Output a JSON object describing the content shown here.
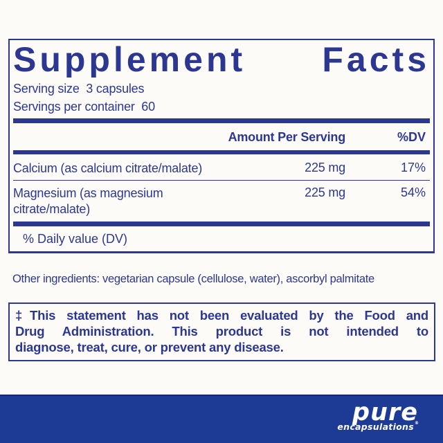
{
  "colors": {
    "ink": "#2c3791",
    "band": "#1d3a94",
    "bg": "#fcfbf8"
  },
  "supplement_panel": {
    "title": "Supplement Facts",
    "serving_size_line": "Serving size  3 capsules",
    "servings_per_container_line": "Servings per container  60",
    "columns": {
      "amount_header": "Amount Per Serving",
      "dv_header": "%DV"
    },
    "rows": [
      {
        "name": "Calcium (as calcium citrate/malate)",
        "amount": "225 mg",
        "dv": "17%"
      },
      {
        "name": "Magnesium (as magnesium citrate/malate)",
        "amount": "225 mg",
        "dv": "54%"
      }
    ],
    "footnote": "% Daily value (DV)"
  },
  "other_ingredients_line": "Other ingredients: vegetarian capsule (cellulose, water), ascorbyl palmitate",
  "fda_disclaimer": {
    "lines": [
      "‡This statement has not been evaluated by the Food and",
      "Drug Administration. This product is not intended to",
      "diagnose, treat, cure, or prevent any disease."
    ]
  },
  "brand": {
    "wordmark": "pure",
    "subtext": "encapsulations",
    "registered_mark": "®"
  }
}
